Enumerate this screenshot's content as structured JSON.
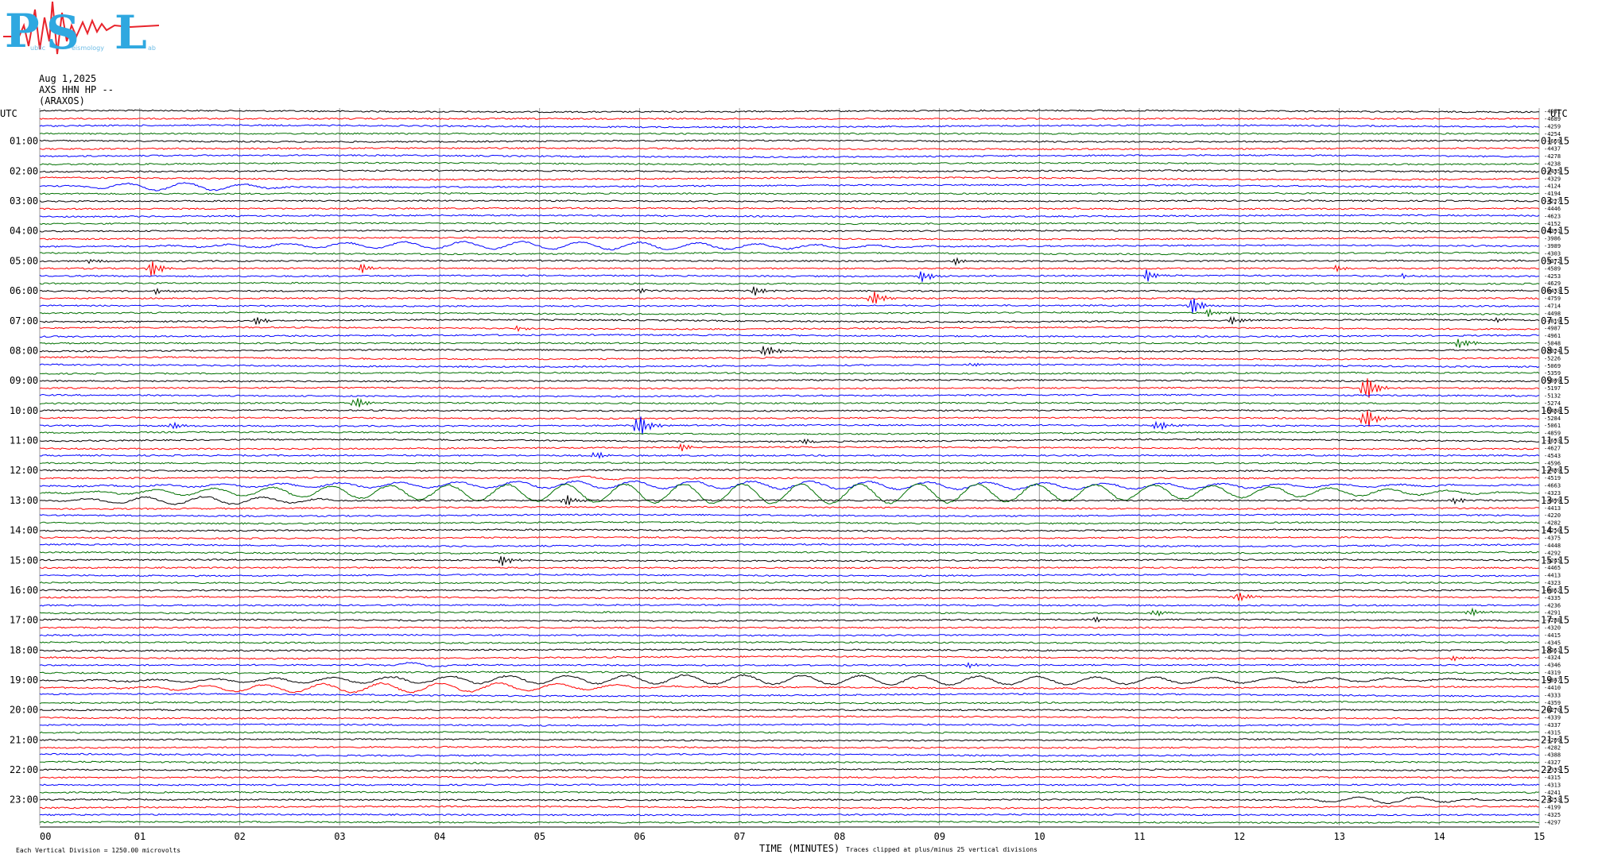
{
  "logo": {
    "letter_p": "P",
    "letter_s": "S",
    "letter_l": "L",
    "sub_p": "ublic",
    "sub_s": "eismology",
    "sub_l": "ab",
    "color": "#2fa8e0",
    "trace_color": "#e8242c"
  },
  "header": {
    "date": "Aug 1,2025",
    "station_line": "AXS HHN HP --",
    "site": "(ARAXOS)"
  },
  "left_axis_title": "UTC",
  "right_axis_title": "UTC",
  "footer": {
    "scale_note": "Each Vertical Division = 1250.00 microvolts",
    "xlabel": "TIME (MINUTES)",
    "clip_note": "Traces clipped at plus/minus 25 vertical divisions"
  },
  "chart_data": {
    "type": "line",
    "title": "",
    "xlabel": "TIME (MINUTES)",
    "ylabel": "UTC",
    "xlim": [
      0,
      15
    ],
    "x_ticks": [
      "00",
      "01",
      "02",
      "03",
      "04",
      "05",
      "06",
      "07",
      "08",
      "09",
      "10",
      "11",
      "12",
      "13",
      "14",
      "15"
    ],
    "grid": true,
    "trace_color_cycle": [
      "#000000",
      "#ff0000",
      "#0000ff",
      "#007000"
    ],
    "left_hour_labels": [
      "01:00",
      "02:00",
      "03:00",
      "04:00",
      "05:00",
      "06:00",
      "07:00",
      "08:00",
      "09:00",
      "10:00",
      "11:00",
      "12:00",
      "13:00",
      "14:00",
      "15:00",
      "16:00",
      "17:00",
      "18:00",
      "19:00",
      "20:00",
      "21:00",
      "22:00",
      "23:00"
    ],
    "right_hour_labels": [
      "01:15",
      "02:15",
      "03:15",
      "04:15",
      "05:15",
      "06:15",
      "07:15",
      "08:15",
      "09:15",
      "10:15",
      "11:15",
      "12:15",
      "13:15",
      "14:15",
      "15:15",
      "16:15",
      "17:15",
      "18:15",
      "19:15",
      "20:15",
      "21:15",
      "22:15",
      "23:15"
    ],
    "trace_offsets": [
      "4951",
      "4689",
      "4259",
      "4254",
      "4669",
      "4437",
      "4278",
      "4238",
      "4435",
      "4329",
      "4124",
      "4194",
      "4227",
      "4446",
      "4623",
      "4152",
      "4391",
      "3986",
      "3989",
      "4303",
      "4372",
      "4589",
      "4253",
      "4629",
      "4433",
      "4759",
      "4714",
      "4498",
      "4819",
      "4987",
      "4961",
      "5048",
      "5024",
      "5226",
      "5069",
      "5359",
      "5049",
      "5197",
      "5132",
      "5274",
      "5488",
      "5284",
      "5061",
      "4859",
      "4693",
      "4627",
      "4543",
      "4596",
      "4489",
      "4519",
      "4663",
      "4323",
      "4499",
      "4413",
      "4220",
      "4282",
      "4250",
      "4375",
      "4448",
      "4292",
      "4245",
      "4465",
      "4413",
      "4323",
      "4362",
      "4335",
      "4236",
      "4291",
      "4288",
      "4320",
      "4415",
      "4345",
      "4361",
      "4324",
      "4346",
      "4319",
      "4347",
      "4410",
      "4333",
      "4359",
      "4270",
      "4339",
      "4337",
      "4315",
      "4209",
      "4282",
      "4388",
      "4327",
      "4335",
      "4315",
      "4313",
      "4241",
      "4253",
      "4199",
      "4325",
      "4297"
    ],
    "events": [
      {
        "row": 20,
        "minute": 0.48,
        "amplitude": 0.3
      },
      {
        "row": 21,
        "minute": 1.1,
        "amplitude": 1.4
      },
      {
        "row": 21,
        "minute": 3.22,
        "amplitude": 0.6
      },
      {
        "row": 20,
        "minute": 9.15,
        "amplitude": 0.5
      },
      {
        "row": 22,
        "minute": 8.82,
        "amplitude": 0.9
      },
      {
        "row": 22,
        "minute": 11.08,
        "amplitude": 0.9
      },
      {
        "row": 21,
        "minute": 12.97,
        "amplitude": 0.5
      },
      {
        "row": 22,
        "minute": 13.64,
        "amplitude": 0.3
      },
      {
        "row": 24,
        "minute": 1.15,
        "amplitude": 0.4
      },
      {
        "row": 24,
        "minute": 6.0,
        "amplitude": 0.4
      },
      {
        "row": 24,
        "minute": 7.15,
        "amplitude": 0.7
      },
      {
        "row": 25,
        "minute": 8.32,
        "amplitude": 1.3
      },
      {
        "row": 26,
        "minute": 11.52,
        "amplitude": 1.4
      },
      {
        "row": 27,
        "minute": 11.68,
        "amplitude": 0.6
      },
      {
        "row": 28,
        "minute": 2.15,
        "amplitude": 0.7
      },
      {
        "row": 28,
        "minute": 11.92,
        "amplitude": 0.5
      },
      {
        "row": 28,
        "minute": 14.58,
        "amplitude": 0.3
      },
      {
        "row": 29,
        "minute": 4.78,
        "amplitude": 0.4
      },
      {
        "row": 31,
        "minute": 14.2,
        "amplitude": 0.8
      },
      {
        "row": 32,
        "minute": 7.25,
        "amplitude": 1.0
      },
      {
        "row": 34,
        "minute": 9.32,
        "amplitude": 0.4
      },
      {
        "row": 37,
        "minute": 13.25,
        "amplitude": 2.2
      },
      {
        "row": 39,
        "minute": 3.15,
        "amplitude": 0.9
      },
      {
        "row": 41,
        "minute": 13.25,
        "amplitude": 1.8
      },
      {
        "row": 42,
        "minute": 1.32,
        "amplitude": 0.6
      },
      {
        "row": 42,
        "minute": 5.98,
        "amplitude": 2.0
      },
      {
        "row": 42,
        "minute": 11.18,
        "amplitude": 0.8
      },
      {
        "row": 44,
        "minute": 7.62,
        "amplitude": 0.5
      },
      {
        "row": 45,
        "minute": 6.42,
        "amplitude": 0.6
      },
      {
        "row": 46,
        "minute": 5.55,
        "amplitude": 0.7
      },
      {
        "row": 52,
        "minute": 5.25,
        "amplitude": 0.9
      },
      {
        "row": 52,
        "minute": 14.15,
        "amplitude": 0.4
      },
      {
        "row": 60,
        "minute": 4.62,
        "amplitude": 0.8
      },
      {
        "row": 65,
        "minute": 11.98,
        "amplitude": 0.8
      },
      {
        "row": 67,
        "minute": 11.15,
        "amplitude": 0.6
      },
      {
        "row": 67,
        "minute": 14.3,
        "amplitude": 0.7
      },
      {
        "row": 68,
        "minute": 10.55,
        "amplitude": 0.4
      },
      {
        "row": 73,
        "minute": 14.15,
        "amplitude": 0.4
      },
      {
        "row": 74,
        "minute": 9.3,
        "amplitude": 0.4
      }
    ],
    "long_period_rows": [
      {
        "row": 10,
        "start": 0.2,
        "end": 2.6,
        "amplitude": 0.5
      },
      {
        "row": 18,
        "start": 0.9,
        "end": 9.2,
        "amplitude": 0.5
      },
      {
        "row": 49,
        "start": 5.1,
        "end": 6.0,
        "amplitude": 0.25
      },
      {
        "row": 50,
        "start": 0.0,
        "end": 15.0,
        "amplitude": 0.5
      },
      {
        "row": 51,
        "start": 0.0,
        "end": 15.0,
        "amplitude": 1.3
      },
      {
        "row": 52,
        "start": 0.0,
        "end": 3.2,
        "amplitude": 0.5
      },
      {
        "row": 74,
        "start": 3.4,
        "end": 4.2,
        "amplitude": 0.3
      },
      {
        "row": 76,
        "start": 0.0,
        "end": 15.0,
        "amplitude": 0.6
      },
      {
        "row": 77,
        "start": 0.6,
        "end": 6.6,
        "amplitude": 0.6
      },
      {
        "row": 92,
        "start": 12.5,
        "end": 14.5,
        "amplitude": 0.4
      }
    ]
  }
}
